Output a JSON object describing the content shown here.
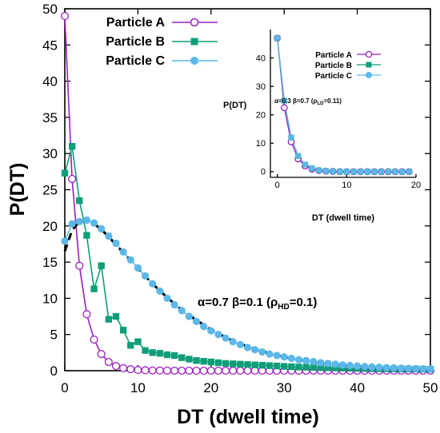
{
  "colors": {
    "particle_a": "#9a1fc0",
    "particle_b": "#0f9e78",
    "particle_c": "#5bb8e8",
    "fit_line": "#000000",
    "axis": "#000000"
  },
  "chart_data": [
    {
      "type": "line",
      "xlabel": "DT (dwell time)",
      "ylabel": "P(DT)",
      "xlim": [
        0,
        50
      ],
      "ylim": [
        0,
        50
      ],
      "xticks": [
        0,
        10,
        20,
        30,
        40,
        50
      ],
      "yticks": [
        0,
        5,
        10,
        15,
        20,
        25,
        30,
        35,
        40,
        45,
        50
      ],
      "grid": false,
      "legend_position": "top-left",
      "annotation": {
        "alpha": "α=0.7",
        "beta": "β=0.1",
        "rho_open": "(ρ",
        "rho_sub": "HD",
        "rho_close": "=0.1)"
      },
      "series": [
        {
          "name": "Particle A",
          "marker": "open-circle",
          "x": [
            0,
            1,
            2,
            3,
            4,
            5,
            6,
            7,
            8,
            9,
            10,
            11,
            12,
            13,
            14,
            15,
            16,
            17,
            18,
            19,
            20,
            21,
            22,
            23,
            24,
            25,
            26,
            27,
            28,
            29,
            30,
            31,
            32,
            33,
            34,
            35,
            36,
            37,
            38,
            39,
            40,
            41,
            42,
            43,
            44,
            45,
            46,
            47,
            48,
            49,
            50
          ],
          "y": [
            49,
            26.5,
            14.5,
            7.8,
            4.3,
            2.3,
            1.2,
            0.65,
            0.35,
            0.2,
            0.1,
            0.06,
            0.04,
            0.02,
            0.01,
            0,
            0,
            0,
            0,
            0,
            0,
            0,
            0,
            0,
            0,
            0,
            0,
            0,
            0,
            0,
            0,
            0,
            0,
            0,
            0,
            0,
            0,
            0,
            0,
            0,
            0,
            0,
            0,
            0,
            0,
            0,
            0,
            0,
            0,
            0,
            0
          ]
        },
        {
          "name": "Particle B",
          "marker": "filled-square",
          "x": [
            0,
            1,
            2,
            3,
            4,
            5,
            6,
            7,
            8,
            9,
            10,
            11,
            12,
            13,
            14,
            15,
            16,
            17,
            18,
            19,
            20,
            21,
            22,
            23,
            24,
            25,
            26,
            27,
            28,
            29,
            30,
            31,
            32,
            33,
            34,
            35,
            36,
            37,
            38,
            39,
            40,
            41,
            42,
            43,
            44,
            45,
            46,
            47,
            48,
            49,
            50
          ],
          "y": [
            27.3,
            31,
            23.5,
            18.7,
            11.3,
            14.5,
            7.1,
            7.5,
            5.6,
            3.5,
            4,
            2.8,
            2.5,
            2.4,
            2.2,
            2.1,
            1.8,
            1.6,
            1.4,
            1.3,
            1.2,
            1.1,
            1,
            0.95,
            0.9,
            0.85,
            0.8,
            0.75,
            0.7,
            0.65,
            0.6,
            0.55,
            0.5,
            0.48,
            0.45,
            0.42,
            0.4,
            0.38,
            0.36,
            0.34,
            0.32,
            0.3,
            0.28,
            0.27,
            0.26,
            0.25,
            0.24,
            0.23,
            0.22,
            0.21,
            0.2
          ]
        },
        {
          "name": "Particle C",
          "marker": "filled-circle",
          "x": [
            0,
            1,
            2,
            3,
            4,
            5,
            6,
            7,
            8,
            9,
            10,
            11,
            12,
            13,
            14,
            15,
            16,
            17,
            18,
            19,
            20,
            21,
            22,
            23,
            24,
            25,
            26,
            27,
            28,
            29,
            30,
            31,
            32,
            33,
            34,
            35,
            36,
            37,
            38,
            39,
            40,
            41,
            42,
            43,
            44,
            45,
            46,
            47,
            48,
            49,
            50
          ],
          "y": [
            17.9,
            20.3,
            20.6,
            20.8,
            20.4,
            19.6,
            18.6,
            17.6,
            16.4,
            15.3,
            14.2,
            13.1,
            12,
            11,
            10,
            9.1,
            8.3,
            7.5,
            6.8,
            6.1,
            5.5,
            5,
            4.5,
            4,
            3.6,
            3.2,
            2.9,
            2.6,
            2.3,
            2.1,
            1.9,
            1.7,
            1.5,
            1.4,
            1.25,
            1.1,
            1,
            0.9,
            0.8,
            0.72,
            0.65,
            0.58,
            0.52,
            0.47,
            0.42,
            0.38,
            0.34,
            0.31,
            0.28,
            0.26,
            0.24
          ]
        }
      ],
      "fit_curve": {
        "style": "dashed",
        "x": [
          0,
          1,
          2,
          3,
          4,
          5,
          6,
          7,
          8,
          9,
          10,
          12,
          14,
          16,
          18,
          20,
          22,
          24,
          26,
          28,
          30,
          32,
          34,
          36,
          38,
          40,
          42,
          44,
          46,
          48,
          50
        ],
        "y": [
          16.5,
          19.4,
          20.6,
          20.7,
          20.3,
          19.5,
          18.5,
          17.4,
          16.3,
          15.2,
          14.1,
          12,
          10.1,
          8.4,
          7,
          5.7,
          4.6,
          3.7,
          3,
          2.4,
          1.9,
          1.5,
          1.2,
          0.95,
          0.75,
          0.6,
          0.48,
          0.38,
          0.3,
          0.24,
          0.2
        ]
      }
    },
    {
      "type": "line",
      "xlabel": "DT (dwell time)",
      "ylabel": "P(DT)",
      "xlim": [
        -1,
        20
      ],
      "ylim": [
        -2,
        50
      ],
      "xticks": [
        0,
        10,
        20
      ],
      "yticks": [
        0,
        10,
        20,
        30,
        40
      ],
      "grid": false,
      "legend_position": "top-right",
      "annotation": {
        "alpha": "α=0.3",
        "beta": "β=0.7",
        "rho_open": "(ρ",
        "rho_sub": "LD",
        "rho_close": "=0.11)"
      },
      "series": [
        {
          "name": "Particle A",
          "marker": "open-circle",
          "x": [
            0,
            1,
            2,
            3,
            4,
            5,
            6,
            7,
            8,
            9,
            10,
            11,
            12,
            13,
            14,
            15,
            16,
            17,
            18,
            19
          ],
          "y": [
            47,
            22.5,
            10.5,
            4.5,
            2,
            0.9,
            0.4,
            0.2,
            0.1,
            0,
            0,
            0,
            0,
            0,
            0,
            0,
            0,
            0,
            0,
            0
          ]
        },
        {
          "name": "Particle B",
          "marker": "filled-square",
          "x": [
            0,
            1,
            2,
            3,
            4,
            5,
            6,
            7,
            8,
            9,
            10,
            11,
            12,
            13,
            14,
            15,
            16,
            17,
            18,
            19
          ],
          "y": [
            47,
            25,
            12,
            5.5,
            2.5,
            1.2,
            0.5,
            0.25,
            0.1,
            0,
            0,
            0,
            0,
            0,
            0,
            0,
            0,
            0,
            0,
            0
          ]
        },
        {
          "name": "Particle C",
          "marker": "filled-circle",
          "x": [
            0,
            1,
            2,
            3,
            4,
            5,
            6,
            7,
            8,
            9,
            10,
            11,
            12,
            13,
            14,
            15,
            16,
            17,
            18,
            19
          ],
          "y": [
            47,
            25,
            12,
            5.5,
            2.5,
            1.2,
            0.5,
            0.25,
            0.1,
            0,
            0,
            0,
            0,
            0,
            0,
            0,
            0,
            0,
            0,
            0
          ]
        }
      ]
    }
  ]
}
